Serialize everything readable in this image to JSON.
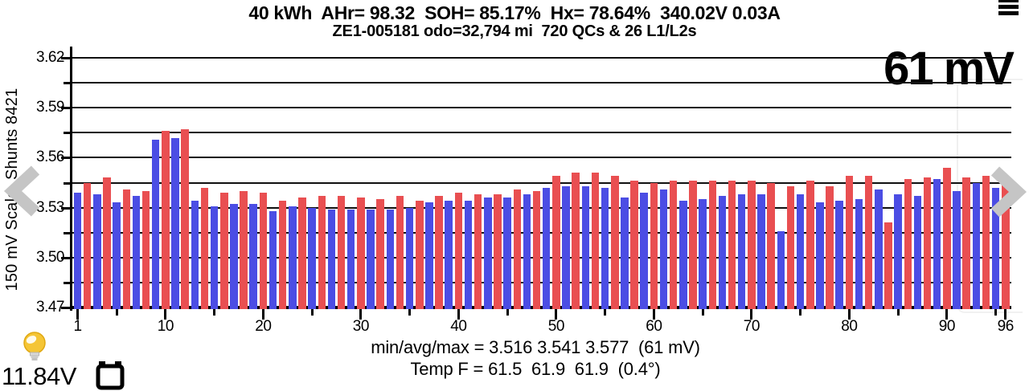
{
  "header": {
    "line1": "40 kWh  AHr= 98.32  SOH= 85.17%  Hx= 78.64%  340.02V 0.03A",
    "line2": "ZE1-005181 odo=32,794 mi  720 QCs & 26 L1/L2s"
  },
  "chart_data": {
    "type": "bar",
    "title": "",
    "xlabel": "",
    "ylabel": "150 mV Scale  Shunts 8421",
    "ylim": [
      3.47,
      3.62
    ],
    "ytick_labels": [
      "3.62",
      "3.59",
      "3.56",
      "3.53",
      "3.50",
      "3.47"
    ],
    "ytick_values": [
      3.62,
      3.59,
      3.56,
      3.53,
      3.5,
      3.47
    ],
    "grid_minor_step": 0.015,
    "grid": "on",
    "x_first_cell": 1,
    "x_last_cell": 96,
    "xticks_labeled": [
      1,
      10,
      20,
      30,
      40,
      50,
      60,
      70,
      80,
      90,
      96
    ],
    "annotation": "61 mV",
    "series_note": "odd cells blue, even cells red",
    "values": [
      3.539,
      3.545,
      3.538,
      3.548,
      3.533,
      3.541,
      3.537,
      3.54,
      3.571,
      3.576,
      3.572,
      3.577,
      3.534,
      3.542,
      3.531,
      3.539,
      3.532,
      3.54,
      3.532,
      3.539,
      3.528,
      3.534,
      3.531,
      3.536,
      3.53,
      3.537,
      3.529,
      3.537,
      3.529,
      3.536,
      3.529,
      3.535,
      3.529,
      3.537,
      3.53,
      3.534,
      3.533,
      3.537,
      3.534,
      3.539,
      3.534,
      3.538,
      3.536,
      3.538,
      3.536,
      3.541,
      3.538,
      3.54,
      3.542,
      3.549,
      3.543,
      3.551,
      3.543,
      3.551,
      3.542,
      3.549,
      3.536,
      3.546,
      3.539,
      3.545,
      3.541,
      3.546,
      3.534,
      3.546,
      3.535,
      3.546,
      3.537,
      3.546,
      3.538,
      3.546,
      3.538,
      3.545,
      3.516,
      3.543,
      3.538,
      3.546,
      3.533,
      3.543,
      3.534,
      3.549,
      3.535,
      3.549,
      3.541,
      3.521,
      3.538,
      3.547,
      3.537,
      3.548,
      3.547,
      3.554,
      3.54,
      3.548,
      3.545,
      3.549,
      3.542,
      3.548
    ]
  },
  "footer": {
    "stats_line": "min/avg/max = 3.516 3.541 3.577  (61 mV)",
    "temp_line": "Temp F = 61.5  61.9  61.9  (0.4°)",
    "aux_voltage": "11.84V"
  },
  "colors": {
    "bar_blue": "#4b4de4",
    "bar_red": "#e94f51",
    "grid": "#101010",
    "chevron": "#c5c5c5",
    "bulb_yellow": "#f5c535",
    "bulb_base": "#c9c9c9"
  }
}
